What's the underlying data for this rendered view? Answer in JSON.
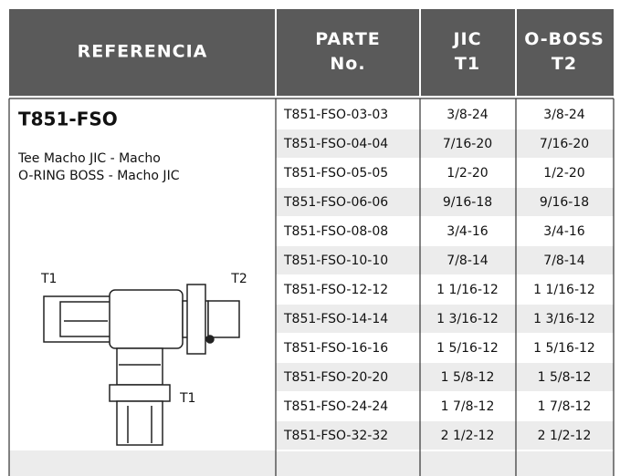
{
  "header": {
    "columns": [
      [
        "REFERENCIA"
      ],
      [
        "PARTE",
        "No."
      ],
      [
        "JIC",
        "T1"
      ],
      [
        "O-BOSS",
        "T2"
      ]
    ]
  },
  "product": {
    "code": "T851-FSO",
    "description": [
      "Tee Macho JIC - Macho",
      "O-RING BOSS - Macho JIC"
    ],
    "diagram_labels": [
      "T1",
      "T2",
      "T1"
    ]
  },
  "table": {
    "rows": [
      [
        "T851-FSO-03-03",
        "3/8-24",
        "3/8-24"
      ],
      [
        "T851-FSO-04-04",
        "7/16-20",
        "7/16-20"
      ],
      [
        "T851-FSO-05-05",
        "1/2-20",
        "1/2-20"
      ],
      [
        "T851-FSO-06-06",
        "9/16-18",
        "9/16-18"
      ],
      [
        "T851-FSO-08-08",
        "3/4-16",
        "3/4-16"
      ],
      [
        "T851-FSO-10-10",
        "7/8-14",
        "7/8-14"
      ],
      [
        "T851-FSO-12-12",
        "1 1/16-12",
        "1 1/16-12"
      ],
      [
        "T851-FSO-14-14",
        "1 3/16-12",
        "1 3/16-12"
      ],
      [
        "T851-FSO-16-16",
        "1 5/16-12",
        "1 5/16-12"
      ],
      [
        "T851-FSO-20-20",
        "1 5/8-12",
        "1 5/8-12"
      ],
      [
        "T851-FSO-24-24",
        "1 7/8-12",
        "1 7/8-12"
      ],
      [
        "T851-FSO-32-32",
        "2 1/2-12",
        "2 1/2-12"
      ]
    ]
  }
}
